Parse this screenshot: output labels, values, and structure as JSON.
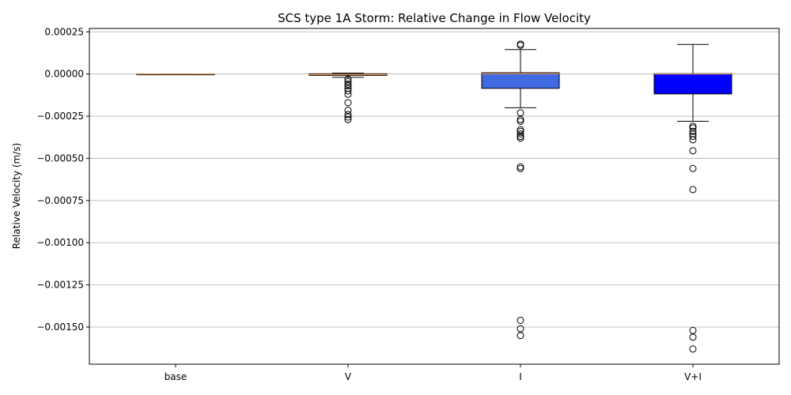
{
  "chart_data": {
    "type": "boxplot",
    "title": "SCS type 1A Storm: Relative Change in Flow Velocity",
    "xlabel": "",
    "ylabel": "Relative Velocity (m/s)",
    "ylim": [
      -0.00172,
      0.00027
    ],
    "grid": "y",
    "yticks": [
      0.00025,
      0.0,
      -0.00025,
      -0.0005,
      -0.00075,
      -0.001,
      -0.00125,
      -0.0015
    ],
    "ytick_labels": [
      "0.00025",
      "0.00000",
      "−0.00025",
      "−0.00050",
      "−0.00075",
      "−0.00100",
      "−0.00125",
      "−0.00150"
    ],
    "categories": [
      "base",
      "V",
      "I",
      "V+I"
    ],
    "series": [
      {
        "category": "base",
        "fill": "#ffffff",
        "median": 0.0,
        "q1": 0.0,
        "q3": 0.0,
        "whisker_low": 0.0,
        "whisker_high": 0.0,
        "outliers": []
      },
      {
        "category": "V",
        "fill": "#f4a460",
        "median": -3e-06,
        "q1": -8e-06,
        "q3": 1.5e-06,
        "whisker_low": -2e-05,
        "whisker_high": 5e-06,
        "outliers": [
          -3e-05,
          -4.5e-05,
          -6e-05,
          -7e-05,
          -8.5e-05,
          -0.0001,
          -0.00012,
          -0.00017,
          -0.000215,
          -0.00024,
          -0.000255,
          -0.00027
        ]
      },
      {
        "category": "I",
        "fill": "#4169e1",
        "median": 2e-06,
        "q1": -8.5e-05,
        "q3": 7.5e-06,
        "whisker_low": -0.0002,
        "whisker_high": 0.000145,
        "outliers": [
          0.000177,
          0.00017,
          -0.00023,
          -0.00027,
          -0.00028,
          -0.00033,
          -0.00034,
          -0.000355,
          -0.00037,
          -0.00038,
          -0.00055,
          -0.00056,
          -0.00146,
          -0.00151,
          -0.00155
        ]
      },
      {
        "category": "V+I",
        "fill": "#0000ff",
        "median": 0.0,
        "q1": -0.000118,
        "q3": 2e-06,
        "whisker_low": -0.00028,
        "whisker_high": 0.000175,
        "outliers": [
          -0.00031,
          -0.00032,
          -0.00034,
          -0.000355,
          -0.00037,
          -0.00039,
          -0.000455,
          -0.00056,
          -0.000685,
          -0.00152,
          -0.00156,
          -0.00163
        ]
      }
    ],
    "median_color": "#f4a460"
  }
}
